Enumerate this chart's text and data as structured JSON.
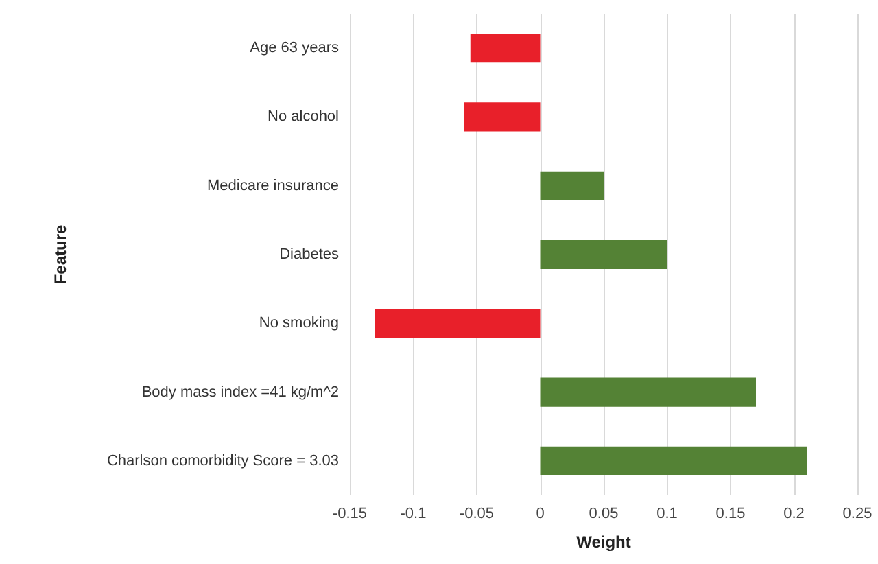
{
  "chart_data": {
    "type": "bar",
    "orientation": "horizontal",
    "xlabel": "Weight",
    "ylabel": "Feature",
    "categories": [
      "Age 63 years",
      "No alcohol",
      "Medicare insurance",
      "Diabetes",
      "No smoking",
      "Body mass index =41 kg/m^2",
      "Charlson comorbidity Score = 3.03"
    ],
    "values": [
      -0.055,
      -0.06,
      0.05,
      0.1,
      -0.13,
      0.17,
      0.21
    ],
    "colors": [
      "#e8202a",
      "#e8202a",
      "#548235",
      "#548235",
      "#e8202a",
      "#548235",
      "#548235"
    ],
    "xlim": [
      -0.15,
      0.25
    ],
    "xticks": [
      -0.15,
      -0.1,
      -0.05,
      0,
      0.05,
      0.1,
      0.15,
      0.2,
      0.25
    ],
    "grid": "x"
  }
}
